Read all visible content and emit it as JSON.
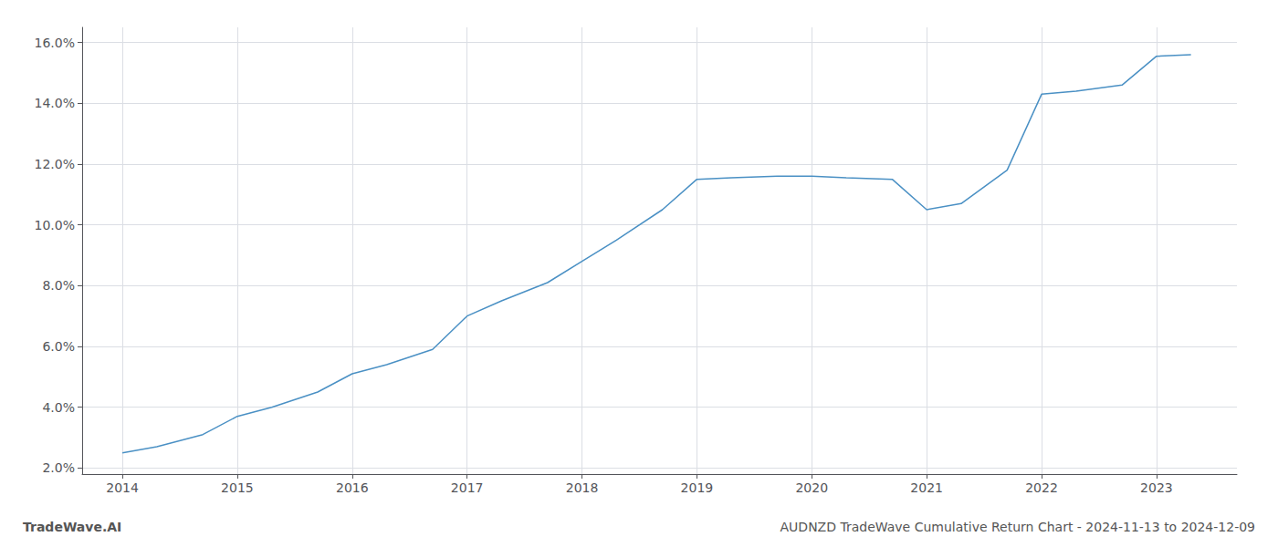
{
  "chart_data": {
    "type": "line",
    "x": [
      2014,
      2014.3,
      2014.7,
      2015,
      2015.3,
      2015.7,
      2016,
      2016.3,
      2016.7,
      2017,
      2017.3,
      2017.7,
      2018,
      2018.3,
      2018.7,
      2019,
      2019.3,
      2019.7,
      2020,
      2020.3,
      2020.7,
      2021,
      2021.3,
      2021.7,
      2022,
      2022.3,
      2022.7,
      2023,
      2023.3
    ],
    "values": [
      2.5,
      2.7,
      3.1,
      3.7,
      4.0,
      4.5,
      5.1,
      5.4,
      5.9,
      7.0,
      7.5,
      8.1,
      8.8,
      9.5,
      10.5,
      11.5,
      11.55,
      11.6,
      11.6,
      11.55,
      11.5,
      10.5,
      10.7,
      11.8,
      14.3,
      14.4,
      14.6,
      15.55,
      15.6
    ],
    "color": "#4a90c4",
    "xlim": [
      2013.65,
      2023.7
    ],
    "xticks": [
      2014,
      2015,
      2016,
      2017,
      2018,
      2019,
      2020,
      2021,
      2022,
      2023
    ],
    "ylim": [
      1.8,
      16.5
    ],
    "yticks": [
      {
        "value": 2.0,
        "label": "2.0%"
      },
      {
        "value": 4.0,
        "label": "4.0%"
      },
      {
        "value": 6.0,
        "label": "6.0%"
      },
      {
        "value": 8.0,
        "label": "8.0%"
      },
      {
        "value": 10.0,
        "label": "10.0%"
      },
      {
        "value": 12.0,
        "label": "12.0%"
      },
      {
        "value": 14.0,
        "label": "14.0%"
      },
      {
        "value": 16.0,
        "label": "16.0%"
      }
    ],
    "grid": true,
    "annotations": [
      "TradeWave.AI",
      "AUDNZD TradeWave Cumulative Return Chart - 2024-11-13 to 2024-12-09"
    ]
  }
}
